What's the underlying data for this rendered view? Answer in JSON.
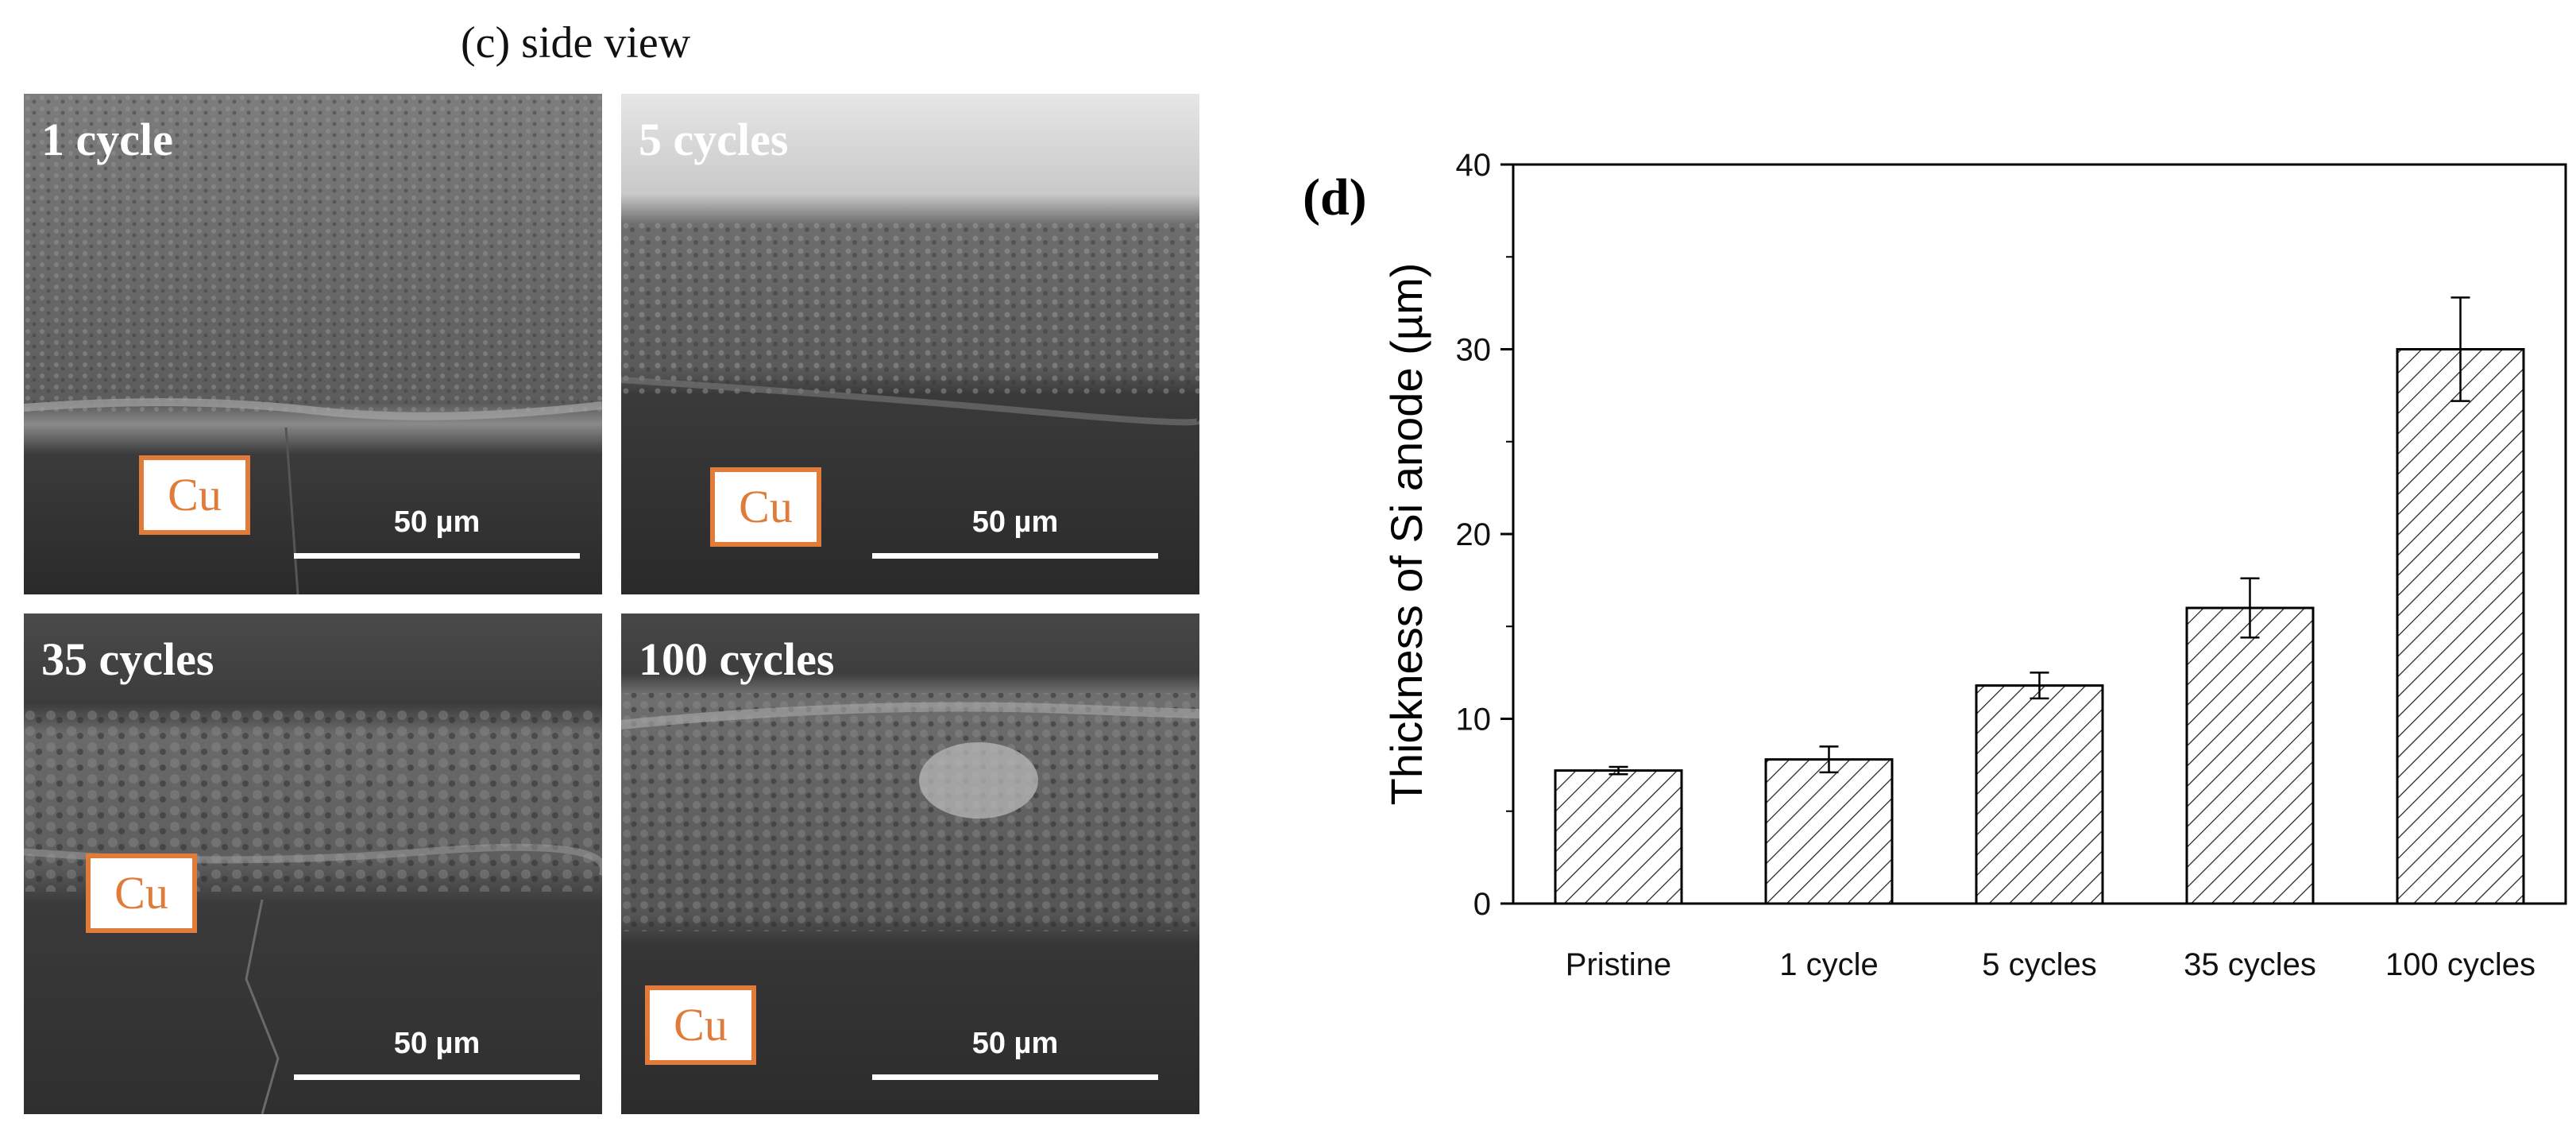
{
  "figure": {
    "caption": "(c) side view",
    "panel_label": "(d)"
  },
  "sem_images": [
    {
      "label": "1 cycle",
      "material": "Cu",
      "scale": "50 µm"
    },
    {
      "label": "5 cycles",
      "material": "Cu",
      "scale": "50 µm"
    },
    {
      "label": "35 cycles",
      "material": "Cu",
      "scale": "50 µm"
    },
    {
      "label": "100 cycles",
      "material": "Cu",
      "scale": "50 µm"
    }
  ],
  "colors": {
    "cu_box": "#e07b39",
    "bar_hatch": "#222222"
  },
  "chart_data": {
    "type": "bar",
    "title": "",
    "xlabel": "",
    "ylabel": "Thickness of Si anode (µm)",
    "categories": [
      "Pristine",
      "1 cycle",
      "5 cycles",
      "35 cycles",
      "100 cycles"
    ],
    "values": [
      7.2,
      7.8,
      11.8,
      16.0,
      30.0
    ],
    "errors": [
      0.2,
      0.7,
      0.7,
      1.6,
      2.8
    ],
    "ylim": [
      0,
      40
    ],
    "yticks": [
      0,
      10,
      20,
      30,
      40
    ],
    "bar_fill": "diagonal hatch",
    "grid": false,
    "legend": "none"
  }
}
